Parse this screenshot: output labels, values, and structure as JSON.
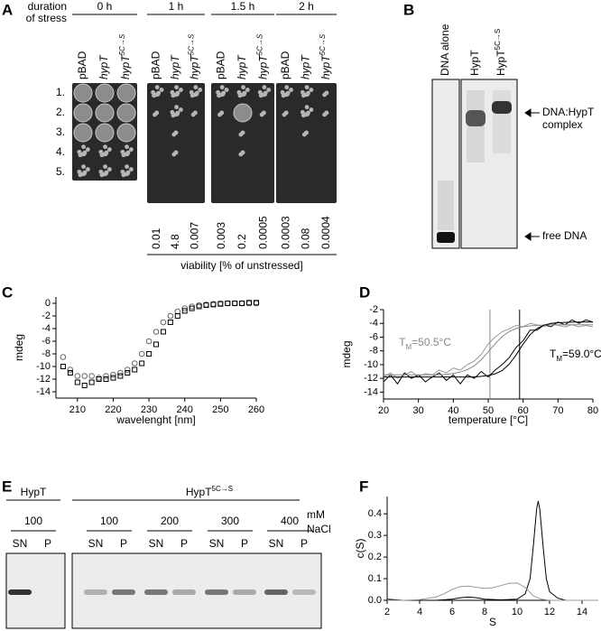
{
  "panel_a": {
    "label": "A",
    "stress_label": [
      "duration",
      "of stress"
    ],
    "times": [
      "0 h",
      "1 h",
      "1.5 h",
      "2 h"
    ],
    "strains": [
      {
        "base": "pBAD",
        "italic": false
      },
      {
        "base": "hypT",
        "italic": true
      },
      {
        "base": "hypT",
        "sup": "5C→S",
        "italic": true
      }
    ],
    "rows": [
      "1.",
      "2.",
      "3.",
      "4.",
      "5."
    ],
    "viability": [
      [
        0.01,
        4.8,
        0.007
      ],
      [
        0.003,
        0.2,
        0.0005
      ],
      [
        0.0003,
        0.08,
        0.0004
      ]
    ],
    "viability_label": "viability [% of unstressed]"
  },
  "panel_b": {
    "label": "B",
    "lanes": [
      {
        "base": "DNA alone"
      },
      {
        "base": "HypT"
      },
      {
        "base": "HypT",
        "sup": "5C→S"
      }
    ],
    "complex_label": [
      "DNA:HypT",
      "complex"
    ],
    "free_label": "free DNA"
  },
  "panel_e": {
    "label": "E",
    "groups": [
      {
        "base": "HypT"
      },
      {
        "base": "HypT",
        "sup": "5C→S"
      }
    ],
    "salt": [
      100,
      100,
      200,
      300,
      400
    ],
    "salt_unit": [
      "mM",
      "NaCl"
    ],
    "fractions": [
      "SN",
      "P"
    ]
  },
  "chart_data": [
    {
      "type": "scatter",
      "panel_label": "C",
      "ylabel": "mdeg",
      "xlabel": "wavelenght [nm]",
      "xlim": [
        204,
        260
      ],
      "ylim": [
        -15,
        1
      ],
      "xticks": [
        210,
        220,
        230,
        240,
        250,
        260
      ],
      "yticks": [
        -14,
        -12,
        -10,
        -8,
        -6,
        -4,
        -2,
        0
      ],
      "series": [
        {
          "marker": "circle",
          "color": "#666666",
          "x": [
            206,
            208,
            210,
            212,
            214,
            216,
            218,
            220,
            222,
            224,
            226,
            228,
            230,
            232,
            234,
            236,
            238,
            240,
            242,
            244,
            246,
            248,
            250,
            252,
            254,
            256,
            258,
            260
          ],
          "values": [
            -8.5,
            -10.5,
            -11.5,
            -11.5,
            -11.5,
            -11.8,
            -11.5,
            -11.3,
            -11,
            -10.5,
            -9.5,
            -8,
            -6,
            -4.5,
            -3,
            -2,
            -1.3,
            -0.8,
            -0.5,
            -0.3,
            -0.2,
            -0.1,
            0,
            0,
            0,
            0,
            0,
            0
          ]
        },
        {
          "marker": "square",
          "color": "#000000",
          "x": [
            206,
            208,
            210,
            212,
            214,
            216,
            218,
            220,
            222,
            224,
            226,
            228,
            230,
            232,
            234,
            236,
            238,
            240,
            242,
            244,
            246,
            248,
            250,
            252,
            254,
            256,
            258,
            260
          ],
          "values": [
            -10,
            -11,
            -12.5,
            -13,
            -12.5,
            -12,
            -12,
            -11.8,
            -11.5,
            -11,
            -10.5,
            -9.5,
            -8,
            -6.5,
            -4.5,
            -3,
            -2,
            -1.2,
            -0.8,
            -0.5,
            -0.3,
            -0.2,
            -0.1,
            0,
            0,
            0,
            0.1,
            0.1
          ]
        }
      ]
    },
    {
      "type": "line",
      "panel_label": "D",
      "ylabel": "mdeg",
      "xlabel": "temperature [°C]",
      "xlim": [
        20,
        80
      ],
      "ylim": [
        -15,
        -2
      ],
      "xticks": [
        20,
        30,
        40,
        50,
        60,
        70,
        80
      ],
      "yticks": [
        -14,
        -12,
        -10,
        -8,
        -6,
        -4,
        -2
      ],
      "series": [
        {
          "color": "#999999",
          "x": [
            20,
            22,
            24,
            26,
            28,
            30,
            32,
            34,
            36,
            38,
            40,
            42,
            44,
            46,
            48,
            50,
            52,
            54,
            56,
            58,
            60,
            62,
            64,
            66,
            68,
            70,
            72,
            74,
            76,
            78,
            80
          ],
          "values": [
            -11.8,
            -11.2,
            -12,
            -11.5,
            -11,
            -11.8,
            -11.3,
            -11.5,
            -10.8,
            -11.2,
            -10.5,
            -10.8,
            -10,
            -9.5,
            -8.5,
            -7,
            -6,
            -5.2,
            -4.8,
            -4.3,
            -4.5,
            -4,
            -4.2,
            -4.5,
            -4,
            -4.3,
            -4.5,
            -4.2,
            -4.5,
            -4.3,
            -4.5
          ]
        },
        {
          "color": "#000000",
          "x": [
            20,
            22,
            24,
            26,
            28,
            30,
            32,
            34,
            36,
            38,
            40,
            42,
            44,
            46,
            48,
            50,
            52,
            54,
            56,
            58,
            60,
            62,
            64,
            66,
            68,
            70,
            72,
            74,
            76,
            78,
            80
          ],
          "values": [
            -12.5,
            -11.5,
            -12.8,
            -11.2,
            -12,
            -11.5,
            -12.5,
            -11.8,
            -11.2,
            -12.3,
            -11.5,
            -12.8,
            -11.5,
            -12,
            -11,
            -11.8,
            -10.8,
            -10,
            -9,
            -7.5,
            -6.5,
            -5,
            -5,
            -4.2,
            -4.5,
            -3.8,
            -4.2,
            -3.5,
            -4,
            -3.5,
            -3.8
          ]
        },
        {
          "color": "#888888",
          "x": [
            20,
            22,
            24,
            26,
            28,
            30,
            32,
            34,
            36,
            38,
            40,
            42,
            44,
            46,
            48,
            50,
            52,
            54,
            56,
            58,
            60,
            62,
            64,
            66,
            68,
            70,
            72,
            74,
            76,
            78,
            80
          ],
          "values": [
            -11.5,
            -11.5,
            -11.5,
            -11.5,
            -11.5,
            -11.5,
            -11.5,
            -11.5,
            -11.5,
            -11.4,
            -11.29,
            -11.09,
            -10.75,
            -10.17,
            -9.29,
            -8.15,
            -6.96,
            -5.93,
            -5.21,
            -4.75,
            -4.5,
            -4.36,
            -4.28,
            -4.24,
            -4.22,
            -4.21,
            -4.2,
            -4.2,
            -4.2,
            -4.2,
            -4.2
          ]
        },
        {
          "color": "#000000",
          "x": [
            20,
            22,
            24,
            26,
            28,
            30,
            32,
            34,
            36,
            38,
            40,
            42,
            44,
            46,
            48,
            50,
            52,
            54,
            56,
            58,
            60,
            62,
            64,
            66,
            68,
            70,
            72,
            74,
            76,
            78,
            80
          ],
          "values": [
            -11.8,
            -11.8,
            -11.8,
            -11.8,
            -11.8,
            -11.8,
            -11.8,
            -11.8,
            -11.8,
            -11.8,
            -11.8,
            -11.8,
            -11.8,
            -11.8,
            -11.7,
            -11.59,
            -11.34,
            -10.85,
            -9.95,
            -8.59,
            -7.01,
            -5.65,
            -4.75,
            -4.26,
            -4.01,
            -3.9,
            -3.85,
            -3.82,
            -3.81,
            -3.8,
            -3.8
          ]
        }
      ],
      "annotations": [
        {
          "prefix": "T",
          "subscript": "M",
          "suffix": "=50.5°C",
          "x": 50.5,
          "color": "#888888"
        },
        {
          "prefix": "T",
          "subscript": "M",
          "suffix": "=59.0°C",
          "x": 59,
          "color": "#000000"
        }
      ]
    },
    {
      "type": "line",
      "panel_label": "F",
      "ylabel": "c(S)",
      "xlabel": "S",
      "xlim": [
        2,
        15
      ],
      "ylim": [
        0,
        0.48
      ],
      "xticks": [
        2,
        4,
        6,
        8,
        10,
        12,
        14
      ],
      "yticks": [
        {
          "value": 0,
          "label": "0.0"
        },
        0.1,
        0.2,
        0.3,
        0.4
      ],
      "series": [
        {
          "color": "#000000",
          "x": [
            2,
            3,
            4,
            5,
            6,
            6.5,
            7,
            7.5,
            8,
            9,
            10,
            10.5,
            10.8,
            11,
            11.2,
            11.3,
            11.4,
            11.6,
            11.8,
            12,
            12.5,
            13,
            14,
            15
          ],
          "values": [
            0.005,
            0,
            0,
            0,
            0.005,
            0.012,
            0.015,
            0.012,
            0.005,
            0.002,
            0.005,
            0.03,
            0.1,
            0.25,
            0.42,
            0.46,
            0.42,
            0.25,
            0.1,
            0.04,
            0.01,
            0,
            0,
            0
          ]
        },
        {
          "color": "#999999",
          "x": [
            2,
            3,
            4,
            5,
            5.5,
            6,
            6.5,
            7,
            7.5,
            8,
            8.5,
            9,
            9.5,
            10,
            10.5,
            11,
            11.5,
            12,
            13,
            14,
            15
          ],
          "values": [
            0,
            0,
            0.003,
            0.015,
            0.03,
            0.05,
            0.063,
            0.066,
            0.06,
            0.055,
            0.058,
            0.068,
            0.078,
            0.08,
            0.06,
            0.02,
            0.005,
            0,
            0,
            0,
            0
          ]
        }
      ]
    }
  ]
}
